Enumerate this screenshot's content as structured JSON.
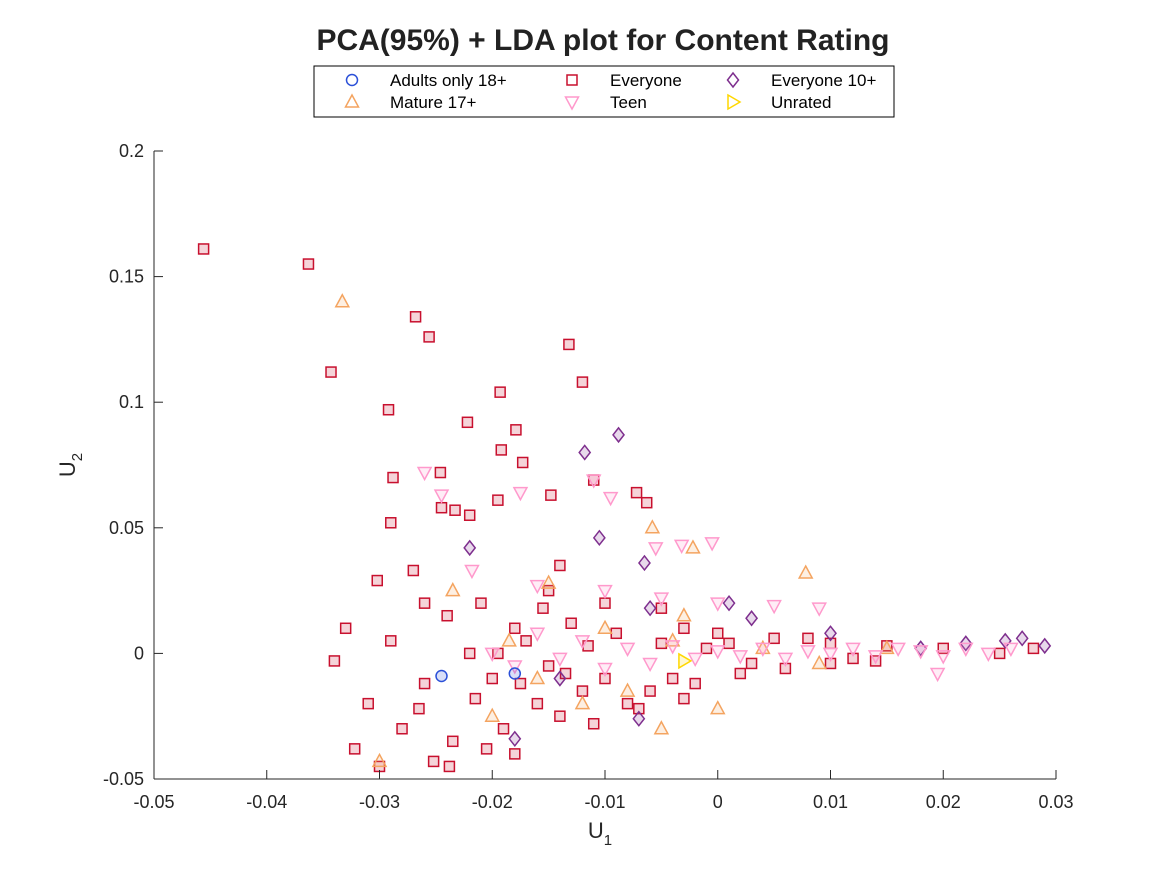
{
  "chart_data": {
    "type": "scatter",
    "title": "PCA(95%) + LDA plot for Content Rating",
    "xlabel_main": "U",
    "xlabel_sub": "1",
    "ylabel_main": "U",
    "ylabel_sub": "2",
    "xlim": [
      -0.05,
      0.03
    ],
    "ylim": [
      -0.05,
      0.2
    ],
    "xticks": [
      "-0.05",
      "-0.04",
      "-0.03",
      "-0.02",
      "-0.01",
      "0",
      "0.01",
      "0.02",
      "0.03"
    ],
    "yticks": [
      "-0.05",
      "0",
      "0.05",
      "0.1",
      "0.15",
      "0.2"
    ],
    "legend_position": "top-center",
    "series": [
      {
        "name": "Adults only 18+",
        "marker": "circle",
        "color": "#2B50D8",
        "points": [
          [
            -0.0245,
            -0.009
          ],
          [
            -0.018,
            -0.008
          ]
        ]
      },
      {
        "name": "Everyone",
        "marker": "square",
        "color": "#C8102E",
        "points": [
          [
            -0.0456,
            0.161
          ],
          [
            -0.0363,
            0.155
          ],
          [
            -0.0343,
            0.112
          ],
          [
            -0.0268,
            0.134
          ],
          [
            -0.0256,
            0.126
          ],
          [
            -0.0292,
            0.097
          ],
          [
            -0.0132,
            0.123
          ],
          [
            -0.012,
            0.108
          ],
          [
            -0.0193,
            0.104
          ],
          [
            -0.0222,
            0.092
          ],
          [
            -0.0179,
            0.089
          ],
          [
            -0.0192,
            0.081
          ],
          [
            -0.0173,
            0.076
          ],
          [
            -0.0246,
            0.072
          ],
          [
            -0.0288,
            0.07
          ],
          [
            -0.0245,
            0.058
          ],
          [
            -0.0233,
            0.057
          ],
          [
            -0.022,
            0.055
          ],
          [
            -0.0195,
            0.061
          ],
          [
            -0.029,
            0.052
          ],
          [
            -0.027,
            0.033
          ],
          [
            -0.0302,
            0.029
          ],
          [
            -0.026,
            0.02
          ],
          [
            -0.0322,
            -0.038
          ],
          [
            -0.03,
            -0.045
          ],
          [
            -0.0252,
            -0.043
          ],
          [
            -0.0238,
            -0.045
          ],
          [
            -0.0205,
            -0.038
          ],
          [
            -0.018,
            -0.04
          ],
          [
            -0.0072,
            0.064
          ],
          [
            -0.0063,
            0.06
          ],
          [
            -0.011,
            0.069
          ],
          [
            -0.0148,
            0.063
          ],
          [
            -0.014,
            0.035
          ],
          [
            -0.015,
            0.025
          ],
          [
            -0.01,
            0.02
          ],
          [
            -0.005,
            0.018
          ],
          [
            -0.003,
            0.01
          ],
          [
            0.0,
            0.008
          ],
          [
            0.005,
            0.006
          ],
          [
            0.01,
            0.004
          ],
          [
            0.015,
            0.003
          ],
          [
            0.02,
            0.002
          ],
          [
            0.025,
            0.0
          ],
          [
            0.028,
            0.002
          ],
          [
            -0.02,
            -0.01
          ],
          [
            -0.022,
            0.0
          ],
          [
            -0.018,
            0.01
          ],
          [
            -0.016,
            -0.02
          ],
          [
            -0.014,
            -0.025
          ],
          [
            -0.012,
            -0.015
          ],
          [
            -0.01,
            -0.01
          ],
          [
            -0.008,
            -0.02
          ],
          [
            -0.006,
            -0.015
          ],
          [
            -0.004,
            -0.01
          ],
          [
            -0.002,
            -0.012
          ],
          [
            0.002,
            -0.008
          ],
          [
            0.006,
            -0.006
          ],
          [
            0.01,
            -0.004
          ],
          [
            0.014,
            -0.003
          ],
          [
            -0.033,
            0.01
          ],
          [
            -0.031,
            -0.02
          ],
          [
            -0.028,
            -0.03
          ],
          [
            -0.026,
            -0.012
          ],
          [
            -0.024,
            0.015
          ],
          [
            -0.021,
            0.02
          ],
          [
            -0.019,
            -0.03
          ],
          [
            -0.017,
            0.005
          ],
          [
            -0.015,
            -0.005
          ],
          [
            -0.013,
            0.012
          ],
          [
            -0.011,
            -0.028
          ],
          [
            -0.009,
            0.008
          ],
          [
            -0.007,
            -0.022
          ],
          [
            -0.005,
            0.004
          ],
          [
            -0.003,
            -0.018
          ],
          [
            -0.001,
            0.002
          ],
          [
            0.001,
            0.004
          ],
          [
            0.003,
            -0.004
          ],
          [
            0.008,
            0.006
          ],
          [
            0.012,
            -0.002
          ],
          [
            -0.034,
            -0.003
          ],
          [
            -0.029,
            0.005
          ],
          [
            -0.0265,
            -0.022
          ],
          [
            -0.0235,
            -0.035
          ],
          [
            -0.0215,
            -0.018
          ],
          [
            -0.0195,
            0.0
          ],
          [
            -0.0175,
            -0.012
          ],
          [
            -0.0155,
            0.018
          ],
          [
            -0.0135,
            -0.008
          ],
          [
            -0.0115,
            0.003
          ]
        ]
      },
      {
        "name": "Everyone 10+",
        "marker": "diamond",
        "color": "#7E2F8E",
        "points": [
          [
            -0.0088,
            0.087
          ],
          [
            -0.0118,
            0.08
          ],
          [
            -0.0105,
            0.046
          ],
          [
            -0.022,
            0.042
          ],
          [
            -0.0065,
            0.036
          ],
          [
            0.027,
            0.006
          ],
          [
            0.029,
            0.003
          ],
          [
            0.0255,
            0.005
          ],
          [
            0.022,
            0.004
          ],
          [
            0.018,
            0.002
          ],
          [
            0.01,
            0.008
          ],
          [
            0.003,
            0.014
          ],
          [
            -0.006,
            0.018
          ],
          [
            -0.014,
            -0.01
          ],
          [
            -0.018,
            -0.034
          ],
          [
            -0.007,
            -0.026
          ],
          [
            0.001,
            0.02
          ]
        ]
      },
      {
        "name": "Mature 17+",
        "marker": "triangle-up",
        "color": "#F4A460",
        "points": [
          [
            -0.0333,
            0.14
          ],
          [
            -0.03,
            -0.043
          ],
          [
            -0.0058,
            0.05
          ],
          [
            -0.0022,
            0.042
          ],
          [
            0.0078,
            0.032
          ],
          [
            -0.015,
            0.028
          ],
          [
            -0.0235,
            0.025
          ],
          [
            -0.0185,
            0.005
          ],
          [
            -0.016,
            -0.01
          ],
          [
            -0.012,
            -0.02
          ],
          [
            -0.008,
            -0.015
          ],
          [
            -0.005,
            -0.03
          ],
          [
            -0.004,
            0.005
          ],
          [
            0.0,
            -0.022
          ],
          [
            0.004,
            0.002
          ],
          [
            -0.02,
            -0.025
          ],
          [
            -0.01,
            0.01
          ],
          [
            0.009,
            -0.004
          ],
          [
            0.015,
            0.002
          ],
          [
            -0.003,
            0.015
          ]
        ]
      },
      {
        "name": "Teen",
        "marker": "triangle-down",
        "color": "#FF99CC",
        "points": [
          [
            -0.026,
            0.072
          ],
          [
            -0.0245,
            0.063
          ],
          [
            -0.0175,
            0.064
          ],
          [
            -0.011,
            0.069
          ],
          [
            -0.0095,
            0.062
          ],
          [
            -0.0005,
            0.044
          ],
          [
            -0.0032,
            0.043
          ],
          [
            -0.0055,
            0.042
          ],
          [
            -0.0218,
            0.033
          ],
          [
            -0.016,
            0.027
          ],
          [
            -0.01,
            0.025
          ],
          [
            -0.005,
            0.022
          ],
          [
            0.0,
            0.02
          ],
          [
            0.005,
            0.019
          ],
          [
            0.009,
            0.018
          ],
          [
            -0.02,
            0.0
          ],
          [
            -0.018,
            -0.005
          ],
          [
            -0.016,
            0.008
          ],
          [
            -0.014,
            -0.002
          ],
          [
            -0.012,
            0.005
          ],
          [
            -0.01,
            -0.006
          ],
          [
            -0.008,
            0.002
          ],
          [
            -0.006,
            -0.004
          ],
          [
            -0.004,
            0.003
          ],
          [
            -0.002,
            -0.002
          ],
          [
            0.0,
            0.001
          ],
          [
            0.002,
            -0.001
          ],
          [
            0.004,
            0.002
          ],
          [
            0.006,
            -0.002
          ],
          [
            0.008,
            0.001
          ],
          [
            0.01,
            0.0
          ],
          [
            0.012,
            0.002
          ],
          [
            0.014,
            -0.001
          ],
          [
            0.016,
            0.002
          ],
          [
            0.018,
            0.001
          ],
          [
            0.02,
            -0.001
          ],
          [
            0.022,
            0.002
          ],
          [
            0.024,
            0.0
          ],
          [
            0.026,
            0.002
          ],
          [
            0.0195,
            -0.008
          ]
        ]
      },
      {
        "name": "Unrated",
        "marker": "triangle-right",
        "color": "#FFD700",
        "points": [
          [
            -0.003,
            -0.003
          ]
        ]
      }
    ]
  }
}
